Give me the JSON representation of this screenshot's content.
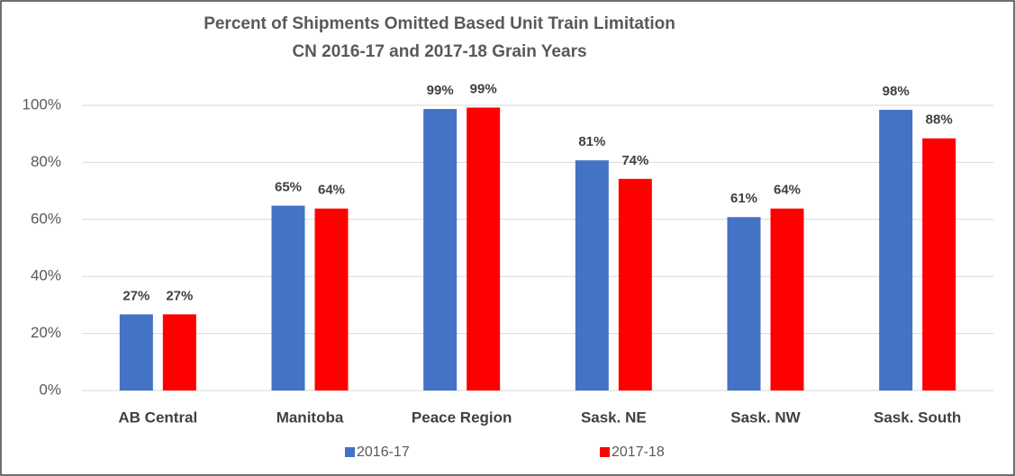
{
  "chart_data": {
    "type": "bar",
    "title": "Percent of Shipments Omitted Based Unit Train Limitation",
    "subtitle": "CN 2016-17 and 2017-18 Grain Years",
    "categories": [
      "AB Central",
      "Manitoba",
      "Peace Region",
      "Sask. NE",
      "Sask. NW",
      "Sask. South"
    ],
    "series": [
      {
        "name": "2016-17",
        "color": "#4472c4",
        "values": [
          26.7,
          64.8,
          98.7,
          80.7,
          60.8,
          98.4
        ],
        "value_labels": [
          "27%",
          "65%",
          "99%",
          "81%",
          "61%",
          "98%"
        ]
      },
      {
        "name": "2017-18",
        "color": "#ff0000",
        "values": [
          26.7,
          63.8,
          99.2,
          74.2,
          63.8,
          88.4
        ],
        "value_labels": [
          "27%",
          "64%",
          "99%",
          "74%",
          "64%",
          "88%"
        ]
      }
    ],
    "ylim": [
      0,
      100
    ],
    "yticks": [
      {
        "value": 0,
        "label": "0%"
      },
      {
        "value": 20,
        "label": "20%"
      },
      {
        "value": 40,
        "label": "40%"
      },
      {
        "value": 60,
        "label": "60%"
      },
      {
        "value": 80,
        "label": "80%"
      },
      {
        "value": 100,
        "label": "100%"
      }
    ],
    "grid": true,
    "legend": "bottom"
  }
}
